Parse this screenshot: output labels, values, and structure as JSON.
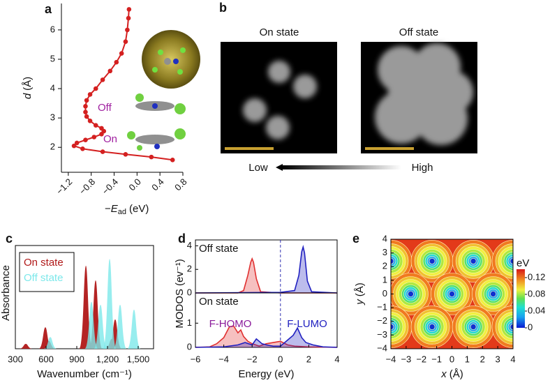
{
  "chart_data": [
    {
      "type": "line",
      "label": "a",
      "color": "#d42020",
      "xlabel": {
        "sign": "−",
        "symbol": "E",
        "sub": "ad",
        "unit": "(eV)"
      },
      "ylabel": {
        "symbol": "d",
        "unit": "(Å)"
      },
      "xlim": [
        -1.32,
        0.8
      ],
      "ylim": [
        1.15,
        6.9
      ],
      "xticks": [
        {
          "value": -1.2,
          "label": "−1.2"
        },
        {
          "value": -0.8,
          "label": "−0.8"
        },
        {
          "value": -0.4,
          "label": "−0.4"
        },
        {
          "value": 0,
          "label": "0.0"
        },
        0.4,
        0.8
      ],
      "yticks": [
        2,
        3,
        4,
        5,
        6
      ],
      "x": [
        0.62,
        0.25,
        -0.2,
        -0.6,
        -0.95,
        -1.1,
        -1.05,
        -0.9,
        -0.75,
        -0.62,
        -0.58,
        -0.62,
        -0.72,
        -0.82,
        -0.88,
        -0.9,
        -0.9,
        -0.88,
        -0.82,
        -0.72,
        -0.6,
        -0.47,
        -0.36,
        -0.27,
        -0.2,
        -0.17,
        -0.15,
        -0.14
      ],
      "values": [
        1.57,
        1.67,
        1.76,
        1.85,
        1.95,
        2.05,
        2.15,
        2.25,
        2.35,
        2.45,
        2.55,
        2.65,
        2.75,
        2.9,
        3.05,
        3.2,
        3.4,
        3.6,
        3.8,
        4.0,
        4.3,
        4.6,
        4.9,
        5.2,
        5.6,
        6.0,
        6.4,
        6.7
      ],
      "annotations": [
        {
          "text": "Off",
          "color": "#a020a0"
        },
        {
          "text": "On",
          "color": "#a020a0"
        }
      ]
    },
    {
      "type": "image",
      "label": "b",
      "images": [
        {
          "title": "On state"
        },
        {
          "title": "Off state"
        }
      ],
      "scale": {
        "low": "Low",
        "high": "High"
      }
    },
    {
      "type": "spectrum",
      "label": "c",
      "xlabel": "Wavenumber (cm⁻¹)",
      "ylabel": "Absorbance",
      "xlim": [
        300,
        1650
      ],
      "ylim": [
        0,
        1
      ],
      "xticks": [
        300,
        600,
        900,
        {
          "value": 1200,
          "label": "1,200"
        },
        {
          "value": 1500,
          "label": "1,500"
        }
      ],
      "series": [
        {
          "name": "On state",
          "color": "#b01818",
          "x": [
            402,
            593,
            627,
            989,
            1084,
            1241,
            1275
          ],
          "values": [
            0.05,
            0.22,
            0.08,
            0.85,
            0.7,
            0.1,
            0.3
          ]
        },
        {
          "name": "Off state",
          "color": "#7de8ea",
          "x": [
            641,
            1043,
            1132,
            1221,
            1323,
            1459
          ],
          "values": [
            0.12,
            0.48,
            0.45,
            0.92,
            0.45,
            0.4
          ]
        }
      ]
    },
    {
      "type": "area",
      "label": "d",
      "xlabel": "Energy (eV)",
      "ylabel": "MODOS (ev⁻¹)",
      "xlim": [
        -6,
        4
      ],
      "xticks": [
        {
          "value": -6,
          "label": "−6"
        },
        {
          "value": -4,
          "label": "−4"
        },
        {
          "value": -2,
          "label": "−2"
        },
        0,
        2,
        4
      ],
      "vline": 0,
      "panels": [
        {
          "title": "Off state",
          "ylim": [
            0,
            4.5
          ],
          "yticks": [
            0,
            2,
            4
          ],
          "series": [
            {
              "color": "#e03030",
              "x": [
                -6,
                -3,
                -2.6,
                -2.3,
                -2.1,
                -2.0,
                -1.9,
                -1.7,
                -1.4,
                0,
                4
              ],
              "values": [
                0,
                0,
                0.2,
                1.5,
                2.6,
                2.9,
                2.6,
                1.2,
                0.1,
                0,
                0
              ]
            },
            {
              "color": "#2020c0",
              "x": [
                -6,
                0,
                1.0,
                1.3,
                1.5,
                1.6,
                1.7,
                1.9,
                2.2,
                4
              ],
              "values": [
                0,
                0.05,
                0.2,
                1.5,
                3.5,
                3.9,
                3.4,
                1.0,
                0.1,
                0
              ]
            }
          ]
        },
        {
          "title": "On state",
          "ylim": [
            0,
            2.25
          ],
          "yticks": [
            0,
            1
          ],
          "series": [
            {
              "color": "#e03030",
              "x": [
                -6,
                -5,
                -4.5,
                -4,
                -3.6,
                -3.3,
                -3.0,
                -2.8,
                -2.6,
                -2.3,
                -2.0,
                -1.5,
                -1,
                -0.5,
                0,
                0.5,
                1,
                2,
                4
              ],
              "values": [
                0,
                0.02,
                0.15,
                0.4,
                0.85,
                0.88,
                0.6,
                0.72,
                0.45,
                0.25,
                0.15,
                0.05,
                0.15,
                0.2,
                0.25,
                0.1,
                0.05,
                0.02,
                0
              ]
            },
            {
              "color": "#2020c0",
              "x": [
                -6,
                -4,
                -3,
                -2.5,
                -2,
                -1.7,
                -1.3,
                -1,
                -0.5,
                0,
                0.5,
                0.9,
                1.2,
                1.5,
                1.8,
                2.3,
                3,
                4
              ],
              "values": [
                0,
                0.02,
                0.1,
                0.2,
                0.1,
                0.35,
                0.15,
                0.1,
                0.05,
                0.05,
                0.3,
                0.5,
                0.8,
                0.4,
                0.2,
                0.1,
                0.02,
                0
              ]
            }
          ],
          "annotations": [
            {
              "text": "F-HOMO",
              "color": "#8a1a9a"
            },
            {
              "text": "F-LUMO",
              "color": "#2020c0"
            }
          ]
        }
      ]
    },
    {
      "type": "contour",
      "label": "e",
      "xlabel": {
        "symbol": "x",
        "unit": "(Å)"
      },
      "ylabel": {
        "symbol": "y",
        "unit": "(Å)"
      },
      "xlim": [
        -4,
        4
      ],
      "ylim": [
        -4,
        4
      ],
      "xticks": [
        {
          "value": -4,
          "label": "−4"
        },
        {
          "value": -3,
          "label": "−3"
        },
        {
          "value": -2,
          "label": "−2"
        },
        {
          "value": -1,
          "label": "−1"
        },
        0,
        1,
        2,
        3,
        4
      ],
      "yticks": [
        {
          "value": -4,
          "label": "−4"
        },
        {
          "value": -3,
          "label": "−3"
        },
        {
          "value": -2,
          "label": "−2"
        },
        {
          "value": -1,
          "label": "−1"
        },
        0,
        1,
        2,
        3,
        4
      ],
      "minima": {
        "x": [
          -4,
          -1.3,
          1.4,
          4,
          -2.7,
          0,
          2.7,
          -4,
          -1.3,
          1.4,
          4
        ],
        "y": [
          2.4,
          2.4,
          2.4,
          2.4,
          0,
          0,
          0,
          -2.4,
          -2.4,
          -2.4,
          -2.4
        ]
      },
      "colorbar": {
        "title": "eV",
        "clim": [
          0,
          0.14
        ],
        "ticks": [
          0,
          0.04,
          0.08,
          0.12
        ]
      }
    }
  ]
}
